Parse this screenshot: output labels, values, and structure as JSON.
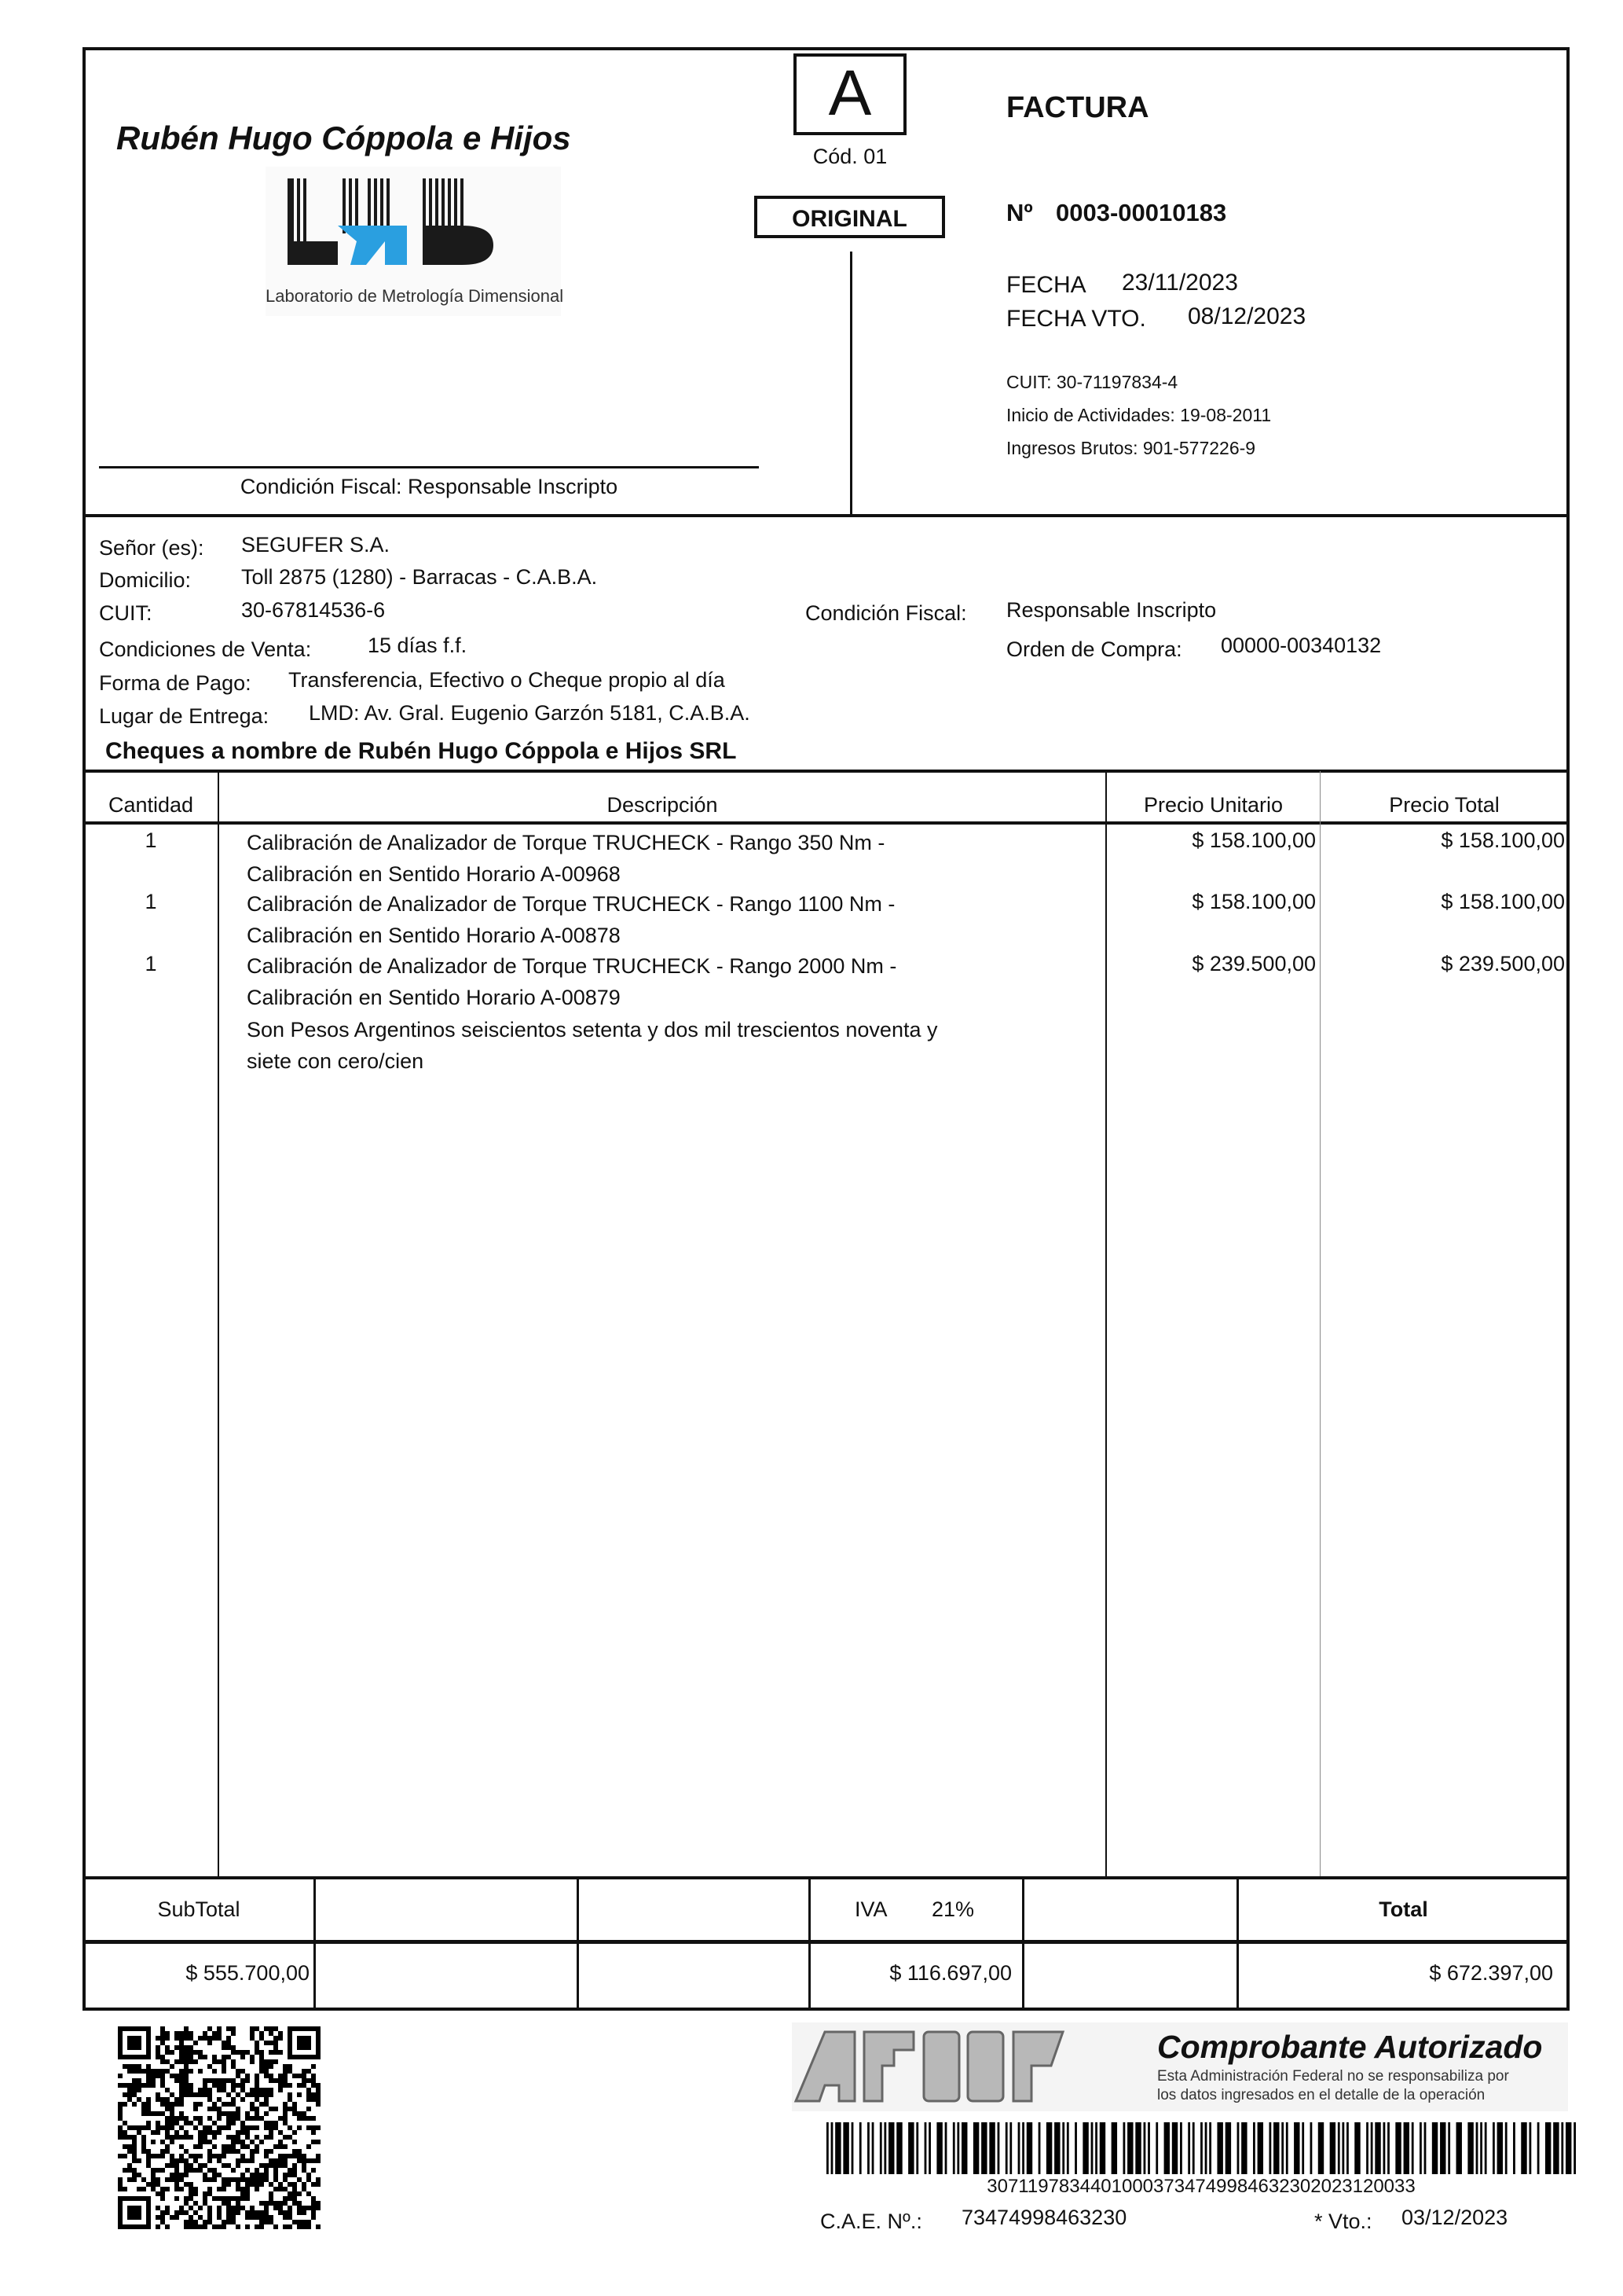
{
  "issuer": {
    "name": "Rubén Hugo Cóppola e Hijos SRL",
    "logo_text": "LMD",
    "logo_subtitle": "Laboratorio de Metrología Dimensional",
    "fiscal_condition": "Condición Fiscal: Responsable Inscripto",
    "cuit": "CUIT: 30-71197834-4",
    "start_activities": "Inicio de Actividades: 19-08-2011",
    "gross_income": "Ingresos Brutos: 901-577226-9"
  },
  "invoice": {
    "letter": "A",
    "code": "Cód. 01",
    "copy": "ORIGINAL",
    "title": "FACTURA",
    "number_label": "Nº",
    "number": "0003-00010183",
    "date_label": "FECHA",
    "date": "23/11/2023",
    "due_label": "FECHA VTO.",
    "due_date": "08/12/2023"
  },
  "client": {
    "name_label": "Señor (es):",
    "name": "SEGUFER S.A.",
    "address_label": "Domicilio:",
    "address": "Toll 2875 (1280) - Barracas - C.A.B.A.",
    "cuit_label": "CUIT:",
    "cuit": "30-67814536-6",
    "fiscal_label": "Condición Fiscal:",
    "fiscal": "Responsable Inscripto",
    "sale_terms_label": "Condiciones de Venta:",
    "sale_terms": "15 días f.f.",
    "po_label": "Orden de Compra:",
    "po": "00000-00340132",
    "payment_label": "Forma de Pago:",
    "payment": "Transferencia, Efectivo o Cheque propio al día",
    "delivery_label": "Lugar de Entrega:",
    "delivery": "LMD: Av. Gral. Eugenio Garzón 5181, C.A.B.A.",
    "cheques_note": "Cheques a nombre de Rubén Hugo Cóppola e Hijos SRL"
  },
  "table": {
    "headers": [
      "Cantidad",
      "Descripción",
      "Precio Unitario",
      "Precio Total"
    ],
    "rows": [
      {
        "qty": "1",
        "line1": "Calibración de Analizador  de Torque TRUCHECK - Rango 350 Nm -",
        "line2": "Calibración en Sentido Horario A-00968",
        "unit": "$ 158.100,00",
        "total": "$ 158.100,00"
      },
      {
        "qty": "1",
        "line1": "Calibración de Analizador  de Torque TRUCHECK - Rango 1100 Nm -",
        "line2": "Calibración en Sentido Horario A-00878",
        "unit": "$ 158.100,00",
        "total": "$ 158.100,00"
      },
      {
        "qty": "1",
        "line1": "Calibración de Analizador  de Torque TRUCHECK - Rango 2000 Nm -",
        "line2": "Calibración en Sentido Horario A-00879",
        "unit": "$ 239.500,00",
        "total": "$ 239.500,00"
      }
    ],
    "amount_words_1": "Son Pesos Argentinos seiscientos setenta y dos mil trescientos noventa y",
    "amount_words_2": "siete con cero/cien"
  },
  "totals": {
    "subtotal_label": "SubTotal",
    "subtotal": "$ 555.700,00",
    "iva_label": "IVA",
    "iva_rate": "21%",
    "iva": "$ 116.697,00",
    "total_label": "Total",
    "total": "$ 672.397,00"
  },
  "afip": {
    "logo_text": "AFIP",
    "authorized": "Comprobante Autorizado",
    "disclaimer_1": "Esta Administración Federal no se responsabiliza por",
    "disclaimer_2": "los datos ingresados en el detalle de la operación",
    "barcode_number": "30711978344010003734749984632302023120033",
    "cae_label": "C.A.E. Nº.:",
    "cae": "73474998463230",
    "vto_label": "* Vto.:",
    "vto": "03/12/2023"
  },
  "colors": {
    "logo_blue": "#2a9fe0",
    "logo_black": "#1a1a1a",
    "afip_gray": "#b8b8b8"
  }
}
